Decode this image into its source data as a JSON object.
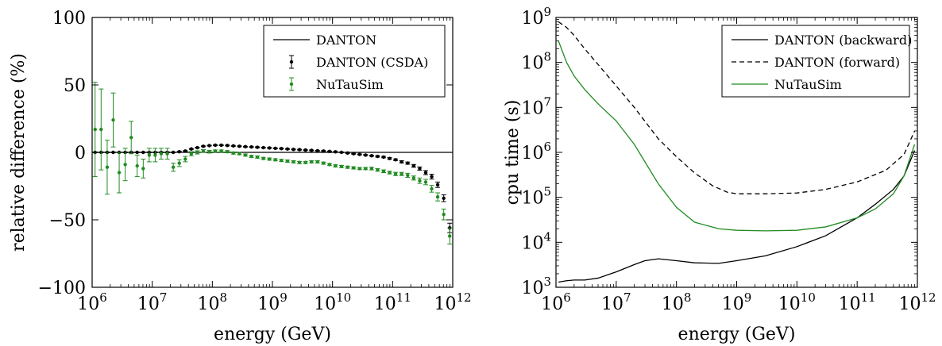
{
  "chart_data": [
    {
      "type": "scatter",
      "xscale": "log",
      "xlim": [
        1000000.0,
        1000000000000.0
      ],
      "ylim": [
        -100,
        100
      ],
      "xlabel": "energy (GeV)",
      "ylabel": "relative difference (%)",
      "x_ticks": [
        "10^6",
        "10^7",
        "10^8",
        "10^9",
        "10^10",
        "10^11",
        "10^12"
      ],
      "y_ticks": [
        "−100",
        "−50",
        "0",
        "50",
        "100"
      ],
      "legend_position": "top-right",
      "grid": false,
      "series": [
        {
          "name": "DANTON",
          "kind": "line",
          "color": "#000000",
          "x": [
            1000000.0,
            1000000000000.0
          ],
          "y": [
            0,
            0
          ]
        },
        {
          "name": "DANTON (CSDA)",
          "kind": "errorbar",
          "color": "#000000",
          "x": [
            1120000.0,
            1410000.0,
            1780000.0,
            2240000.0,
            2820000.0,
            3550000.0,
            4470000.0,
            5620000.0,
            7080000.0,
            8910000.0,
            11200000.0,
            14100000.0,
            17800000.0,
            22400000.0,
            28200000.0,
            35500000.0,
            44700000.0,
            56200000.0,
            70800000.0,
            89100000.0,
            112000000.0,
            141000000.0,
            178000000.0,
            224000000.0,
            282000000.0,
            355000000.0,
            447000000.0,
            562000000.0,
            708000000.0,
            891000000.0,
            1120000000.0,
            1410000000.0,
            1780000000.0,
            2240000000.0,
            2820000000.0,
            3550000000.0,
            4470000000.0,
            5620000000.0,
            7080000000.0,
            8910000000.0,
            11200000000.0,
            14100000000.0,
            17800000000.0,
            22400000000.0,
            28200000000.0,
            35500000000.0,
            44700000000.0,
            56200000000.0,
            70800000000.0,
            89100000000.0,
            112000000000.0,
            141000000000.0,
            178000000000.0,
            224000000000.0,
            282000000000.0,
            355000000000.0,
            447000000000.0,
            562000000000.0,
            708000000000.0,
            891000000000.0
          ],
          "y": [
            0,
            0,
            0,
            0,
            0,
            0,
            0,
            0,
            0,
            0,
            0,
            0,
            0,
            0,
            0.5,
            1,
            2.5,
            3.5,
            4.5,
            5,
            5.3,
            5.3,
            5.1,
            4.8,
            4.5,
            4.2,
            4,
            3.8,
            3.5,
            3.3,
            3,
            2.8,
            2.5,
            2.2,
            2,
            1.7,
            1.5,
            1.2,
            1,
            0.7,
            0.4,
            0,
            -0.5,
            -1,
            -1.5,
            -2,
            -2.5,
            -3,
            -3.5,
            -4.5,
            -5.5,
            -7,
            -8,
            -10,
            -12,
            -15,
            -18,
            -24,
            -34,
            -56
          ],
          "err": [
            0.3,
            0.3,
            0.3,
            0.3,
            0.3,
            0.3,
            0.3,
            0.3,
            0.3,
            0.3,
            0.3,
            0.3,
            0.3,
            0.3,
            0.3,
            0.3,
            0.3,
            0.3,
            0.3,
            0.3,
            0.3,
            0.3,
            0.3,
            0.3,
            0.3,
            0.3,
            0.3,
            0.3,
            0.3,
            0.3,
            0.3,
            0.3,
            0.3,
            0.3,
            0.3,
            0.3,
            0.3,
            0.3,
            0.3,
            0.3,
            0.3,
            0.3,
            0.3,
            0.3,
            0.3,
            0.4,
            0.4,
            0.5,
            0.5,
            0.6,
            0.6,
            0.8,
            0.8,
            1,
            1.2,
            1.5,
            1.8,
            2,
            2.5,
            3.5
          ]
        },
        {
          "name": "NuTauSim",
          "kind": "errorbar",
          "color": "#228B22",
          "x": [
            1120000.0,
            1410000.0,
            1780000.0,
            2240000.0,
            2820000.0,
            3550000.0,
            4470000.0,
            5620000.0,
            7080000.0,
            8910000.0,
            11200000.0,
            14100000.0,
            17800000.0,
            22400000.0,
            28200000.0,
            35500000.0,
            44700000.0,
            56200000.0,
            70800000.0,
            89100000.0,
            112000000.0,
            141000000.0,
            178000000.0,
            224000000.0,
            282000000.0,
            355000000.0,
            447000000.0,
            562000000.0,
            708000000.0,
            891000000.0,
            1120000000.0,
            1410000000.0,
            1780000000.0,
            2240000000.0,
            2820000000.0,
            3550000000.0,
            4470000000.0,
            5620000000.0,
            7080000000.0,
            8910000000.0,
            11200000000.0,
            14100000000.0,
            17800000000.0,
            22400000000.0,
            28200000000.0,
            35500000000.0,
            44700000000.0,
            56200000000.0,
            70800000000.0,
            89100000000.0,
            112000000000.0,
            141000000000.0,
            178000000000.0,
            224000000000.0,
            282000000000.0,
            355000000000.0,
            447000000000.0,
            562000000000.0,
            708000000000.0,
            891000000000.0
          ],
          "y": [
            17,
            17,
            -11,
            24,
            -15,
            -9,
            11,
            -10,
            -12,
            -2,
            -2,
            -1,
            -1,
            -11,
            -8,
            -5,
            -1,
            0,
            1,
            0.5,
            1,
            1,
            0.5,
            -0.5,
            -1,
            -2,
            -3,
            -3.5,
            -4.5,
            -5,
            -5.5,
            -6,
            -6.5,
            -7,
            -7.5,
            -7.5,
            -7,
            -7,
            -8,
            -9,
            -10,
            -10.5,
            -11,
            -11.5,
            -12,
            -12,
            -12,
            -13,
            -14,
            -15,
            -16,
            -16,
            -17,
            -19,
            -21,
            -22,
            -27,
            -33,
            -46,
            -62
          ],
          "err": [
            35,
            30,
            20,
            20,
            15,
            12,
            12,
            8,
            7,
            5,
            5,
            4,
            4,
            3,
            2.5,
            2,
            1.5,
            1.2,
            1,
            1,
            0.8,
            0.8,
            0.8,
            0.8,
            0.8,
            0.8,
            0.8,
            0.8,
            0.8,
            0.8,
            0.8,
            0.8,
            0.8,
            0.8,
            0.8,
            0.8,
            0.8,
            0.8,
            0.8,
            0.8,
            0.8,
            0.8,
            0.8,
            0.8,
            0.8,
            0.8,
            1,
            1,
            1,
            1,
            1.2,
            1.2,
            1.5,
            1.5,
            2,
            2,
            2.5,
            3,
            4,
            6
          ]
        }
      ]
    },
    {
      "type": "line",
      "xscale": "log",
      "yscale": "log",
      "xlim": [
        1000000.0,
        1000000000000.0
      ],
      "ylim": [
        1000.0,
        1000000000.0
      ],
      "xlabel": "energy (GeV)",
      "ylabel": "cpu time (s)",
      "x_ticks": [
        "10^6",
        "10^7",
        "10^8",
        "10^9",
        "10^10",
        "10^11",
        "10^12"
      ],
      "y_ticks": [
        "10^3",
        "10^4",
        "10^5",
        "10^6",
        "10^7",
        "10^8",
        "10^9"
      ],
      "legend_position": "top-right",
      "grid": false,
      "series": [
        {
          "name": "DANTON (backward)",
          "style": "solid",
          "color": "#000000",
          "x": [
            1100000.0,
            1500000.0,
            2000000.0,
            3000000.0,
            5000000.0,
            10000000.0,
            20000000.0,
            30000000.0,
            50000000.0,
            100000000.0,
            200000000.0,
            500000000.0,
            1000000000.0,
            3000000000.0,
            10000000000.0,
            30000000000.0,
            100000000000.0,
            200000000000.0,
            400000000000.0,
            600000000000.0,
            900000000000.0
          ],
          "y": [
            1300,
            1400,
            1450,
            1450,
            1600,
            2200,
            3200,
            3900,
            4300,
            3900,
            3500,
            3400,
            3900,
            5000,
            8000,
            14000,
            35000,
            70000,
            150000,
            300000,
            1100000
          ]
        },
        {
          "name": "DANTON (forward)",
          "style": "dashed",
          "color": "#000000",
          "x": [
            1100000.0,
            1500000.0,
            2000000.0,
            3000000.0,
            5000000.0,
            10000000.0,
            20000000.0,
            50000000.0,
            100000000.0,
            200000000.0,
            400000000.0,
            700000000.0,
            1000000000.0,
            3000000000.0,
            10000000000.0,
            30000000000.0,
            100000000000.0,
            300000000000.0,
            600000000000.0,
            900000000000.0
          ],
          "y": [
            800000000,
            600000000,
            400000000,
            200000000,
            90000000,
            30000000,
            10000000,
            2000000,
            800000,
            350000,
            180000,
            130000,
            120000,
            120000,
            125000,
            150000,
            220000,
            400000,
            900000,
            3000000
          ]
        },
        {
          "name": "NuTauSim",
          "style": "solid",
          "color": "#228B22",
          "x": [
            1100000.0,
            1500000.0,
            2000000.0,
            3000000.0,
            5000000.0,
            10000000.0,
            20000000.0,
            50000000.0,
            100000000.0,
            200000000.0,
            500000000.0,
            1000000000.0,
            3000000000.0,
            10000000000.0,
            30000000000.0,
            100000000000.0,
            200000000000.0,
            400000000000.0,
            600000000000.0,
            900000000000.0
          ],
          "y": [
            300000000,
            100000000,
            50000000,
            25000000,
            12000000,
            5000000,
            1500000,
            200000,
            60000,
            28000,
            20000,
            18500,
            18000,
            18500,
            22000,
            35000,
            55000,
            120000,
            300000,
            1500000
          ]
        }
      ]
    }
  ]
}
